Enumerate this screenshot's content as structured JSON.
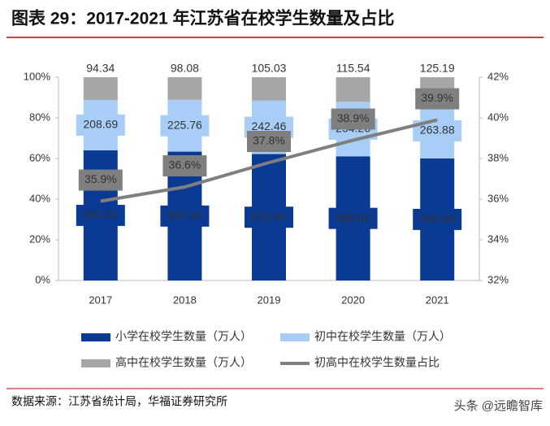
{
  "chart_data": {
    "type": "bar",
    "stacking": "percent",
    "title": "图表 29：2017-2021 年江苏省在校学生数量及占比",
    "source": "数据来源：江苏省统计局，华福证券研究所",
    "watermark": "头条 @远瞻智库",
    "categories": [
      "2017",
      "2018",
      "2019",
      "2020",
      "2021"
    ],
    "series": [
      {
        "name": "小学在校学生数量（万人）",
        "color": "#0b3a94",
        "label_color": "#ffffff",
        "values": [
          540.21,
          560.44,
          572.64,
          580.82,
          585.68
        ]
      },
      {
        "name": "初中在校学生数量（万人）",
        "color": "#a8cdf6",
        "label_color": "#333333",
        "values": [
          208.69,
          225.76,
          242.46,
          254.26,
          263.88
        ]
      },
      {
        "name": "高中在校学生数量（万人）",
        "color": "#a6a6a6",
        "label_color": "#333333",
        "values": [
          94.34,
          98.08,
          105.03,
          115.54,
          125.19
        ]
      },
      {
        "name": "初高中在校学生数量占比",
        "type": "line",
        "axis": "y2",
        "color": "#7f7f7f",
        "values": [
          35.9,
          36.6,
          37.8,
          38.9,
          39.9
        ],
        "value_labels": [
          "35.9%",
          "36.6%",
          "37.8%",
          "38.9%",
          "39.9%"
        ]
      }
    ],
    "ylim": [
      0,
      100
    ],
    "yticks": [
      {
        "value": 0,
        "label": "0%"
      },
      {
        "value": 20,
        "label": "20%"
      },
      {
        "value": 40,
        "label": "40%"
      },
      {
        "value": 60,
        "label": "60%"
      },
      {
        "value": 80,
        "label": "80%"
      },
      {
        "value": 100,
        "label": "100%"
      }
    ],
    "y2lim": [
      32,
      42
    ],
    "y2ticks": [
      {
        "value": 32,
        "label": "32%"
      },
      {
        "value": 34,
        "label": "34%"
      },
      {
        "value": 36,
        "label": "36%"
      },
      {
        "value": 38,
        "label": "38%"
      },
      {
        "value": 40,
        "label": "40%"
      },
      {
        "value": 42,
        "label": "42%"
      }
    ]
  }
}
